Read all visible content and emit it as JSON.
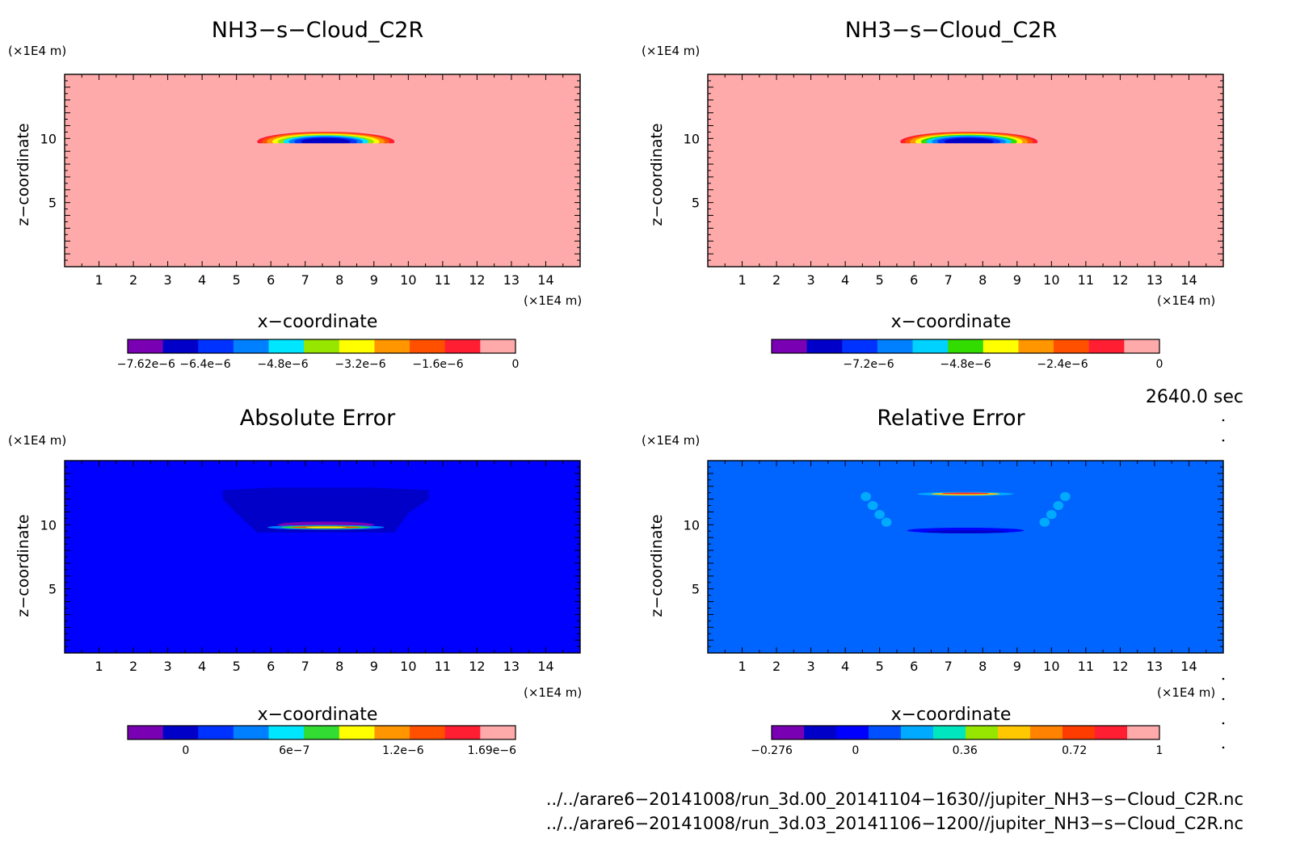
{
  "chart_data": [
    {
      "type": "contour",
      "title": "NH3−s−Cloud_C2R",
      "xlabel": "x−coordinate",
      "ylabel": "z−coordinate",
      "x_unit": "(×1E4 m)",
      "y_unit": "(×1E4 m)",
      "xlim": [
        0,
        15
      ],
      "ylim": [
        0,
        15
      ],
      "x_ticks": [
        1,
        2,
        3,
        4,
        5,
        6,
        7,
        8,
        9,
        10,
        11,
        12,
        13,
        14
      ],
      "y_ticks": [
        5,
        10
      ],
      "background_color": "#ffaaaa",
      "feature": {
        "x_range": [
          5.6,
          9.6
        ],
        "z_range": [
          9.7,
          10.5
        ],
        "min_value": -7.62e-06
      },
      "colorbar": {
        "colors": [
          "#7a00b4",
          "#0000c8",
          "#0032ff",
          "#0080ff",
          "#00e6ff",
          "#96e600",
          "#ffff00",
          "#ff9600",
          "#ff5000",
          "#ff1e32",
          "#ffaaaa"
        ],
        "tick_labels": [
          "−7.62e−6",
          "−6.4e−6",
          "−4.8e−6",
          "−3.2e−6",
          "−1.6e−6",
          "0"
        ],
        "tick_values": [
          -7.62e-06,
          -6.4e-06,
          -4.8e-06,
          -3.2e-06,
          -1.6e-06,
          0
        ],
        "vmin": -8e-06,
        "vmax": 0
      }
    },
    {
      "type": "contour",
      "title": "NH3−s−Cloud_C2R",
      "xlabel": "x−coordinate",
      "ylabel": "z−coordinate",
      "x_unit": "(×1E4 m)",
      "y_unit": "(×1E4 m)",
      "xlim": [
        0,
        15
      ],
      "ylim": [
        0,
        15
      ],
      "x_ticks": [
        1,
        2,
        3,
        4,
        5,
        6,
        7,
        8,
        9,
        10,
        11,
        12,
        13,
        14
      ],
      "y_ticks": [
        5,
        10
      ],
      "background_color": "#ffaaaa",
      "feature": {
        "x_range": [
          5.6,
          9.6
        ],
        "z_range": [
          9.7,
          10.5
        ]
      },
      "colorbar": {
        "colors": [
          "#7a00b4",
          "#0000c8",
          "#0032ff",
          "#0080ff",
          "#00d2ff",
          "#32dc00",
          "#ffff00",
          "#ff9600",
          "#ff5000",
          "#ff1e32",
          "#ffaaaa"
        ],
        "tick_labels": [
          "−7.2e−6",
          "−4.8e−6",
          "−2.4e−6",
          "0"
        ],
        "tick_values": [
          -7.2e-06,
          -4.8e-06,
          -2.4e-06,
          0
        ],
        "vmin": -9.6e-06,
        "vmax": 0
      }
    },
    {
      "type": "contour",
      "title": "Absolute Error",
      "xlabel": "x−coordinate",
      "ylabel": "z−coordinate",
      "x_unit": "(×1E4 m)",
      "y_unit": "(×1E4 m)",
      "xlim": [
        0,
        15
      ],
      "ylim": [
        0,
        15
      ],
      "x_ticks": [
        1,
        2,
        3,
        4,
        5,
        6,
        7,
        8,
        9,
        10,
        11,
        12,
        13,
        14
      ],
      "y_ticks": [
        5,
        10
      ],
      "background_color": "#0000ff",
      "feature": {
        "x_range": [
          4.6,
          10.6
        ],
        "z_range": [
          9.5,
          13.0
        ],
        "max_value": 1.69e-06
      },
      "colorbar": {
        "colors": [
          "#7a00b4",
          "#0000c8",
          "#0032ff",
          "#0080ff",
          "#00e6ff",
          "#32dc32",
          "#ffff00",
          "#ff9600",
          "#ff5000",
          "#ff1e32",
          "#ffaaaa"
        ],
        "tick_labels": [
          "0",
          "6e−7",
          "1.2e−6",
          "1.69e−6"
        ],
        "tick_values": [
          0,
          6e-07,
          1.2e-06,
          1.69e-06
        ],
        "vmin": -3.2e-07,
        "vmax": 1.82e-06
      }
    },
    {
      "type": "contour",
      "title": "Relative Error",
      "xlabel": "x−coordinate",
      "ylabel": "z−coordinate",
      "x_unit": "(×1E4 m)",
      "y_unit": "(×1E4 m)",
      "xlim": [
        0,
        15
      ],
      "ylim": [
        0,
        15
      ],
      "x_ticks": [
        1,
        2,
        3,
        4,
        5,
        6,
        7,
        8,
        9,
        10,
        11,
        12,
        13,
        14
      ],
      "y_ticks": [
        5,
        10
      ],
      "background_color": "#0064ff",
      "feature": {
        "x_range": [
          4.5,
          10.5
        ],
        "z_range": [
          9.3,
          12.6
        ]
      },
      "colorbar": {
        "colors": [
          "#7a00b4",
          "#0000c8",
          "#0000ff",
          "#0050ff",
          "#00aaff",
          "#00e6be",
          "#96e600",
          "#ffc800",
          "#ff8200",
          "#ff3c00",
          "#ff1e32",
          "#ffaaaa"
        ],
        "tick_labels": [
          "−0.276",
          "0",
          "0.36",
          "0.72",
          "1"
        ],
        "tick_values": [
          -0.276,
          0,
          0.36,
          0.72,
          1
        ],
        "vmin": -0.276,
        "vmax": 1.0
      }
    }
  ],
  "timestamp": "2640.0 sec",
  "file_paths": [
    "../../arare6−20141008/run_3d.00_20141104−1630//jupiter_NH3−s−Cloud_C2R.nc",
    "../../arare6−20141008/run_3d.03_20141106−1200//jupiter_NH3−s−Cloud_C2R.nc"
  ]
}
